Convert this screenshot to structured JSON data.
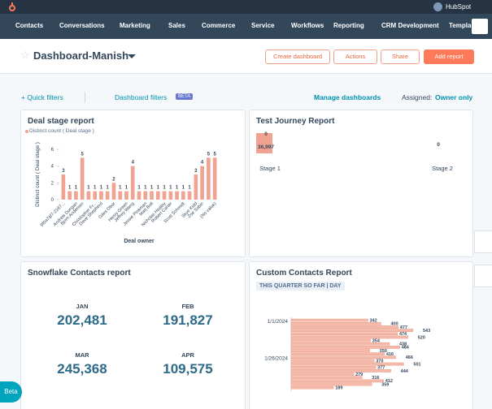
{
  "top_bar": {
    "account": "HubSpot"
  },
  "nav": {
    "items": [
      "Contacts",
      "Conversations",
      "Marketing",
      "Sales",
      "Commerce",
      "Service",
      "Workflows",
      "Reporting",
      "CRM Development",
      "Templa"
    ]
  },
  "header": {
    "title": "Dashboard-Manish",
    "buttons": [
      "Create dashboard",
      "Actions",
      "Share",
      "Add report"
    ]
  },
  "filters": {
    "quick": "Quick filters",
    "dashboard": "Dashboard filters",
    "badge": "BETA",
    "manage": "Manage dashboards",
    "assigned_label": "Assigned:",
    "assigned_value": "Owner only"
  },
  "deal_report": {
    "type": "bar",
    "title": "Deal stage report",
    "legend": "Distinct count ( Deal stage )",
    "y_label": "Distinct count ( Deal stage )",
    "x_label": "Deal owner",
    "color": "#f0a391",
    "categories": [
      "9f0a7af7-2187...",
      null,
      "Andrew Dungan",
      "Bjorn Andersen",
      null,
      "Christopher Fr...",
      "Dave Shepherd",
      null,
      "Giles Obor",
      null,
      "Henry Green",
      "Jeffrey Wang",
      null,
      "Jessie Pinkman",
      "Matt Boll",
      null,
      "Nicholas Healey",
      "Robert Carter",
      null,
      "Scott Schmidt",
      null,
      "Skye Kidd",
      "Zoe Sobin",
      null,
      "(No value)"
    ],
    "values": [
      3,
      1,
      1,
      5,
      1,
      1,
      1,
      1,
      2,
      1,
      1,
      4,
      1,
      1,
      1,
      1,
      1,
      1,
      1,
      1,
      1,
      3,
      4,
      5,
      5
    ],
    "ylim": [
      0,
      6
    ],
    "yticks": [
      0,
      2,
      4,
      6
    ]
  },
  "journey_report": {
    "type": "funnel",
    "title": "Test Journey Report",
    "stages": [
      {
        "label": "Stage 1",
        "top_label": "0",
        "value": 36997,
        "value_label": "36,997"
      },
      {
        "label": "Stage 2",
        "value": 0
      }
    ]
  },
  "snowflake_report": {
    "title": "Snowflake Contacts report",
    "metrics": [
      {
        "label": "JAN",
        "value": "202,481"
      },
      {
        "label": "FEB",
        "value": "191,827"
      },
      {
        "label": "MAR",
        "value": "245,368"
      },
      {
        "label": "APR",
        "value": "109,575"
      }
    ]
  },
  "custom_report": {
    "type": "hbar",
    "title": "Custom Contacts Report",
    "subtitle": "THIS QUARTER SO FAR | DAY",
    "color": "#f5b9aa",
    "categories": [
      "1/1/2024",
      null,
      null,
      null,
      null,
      null,
      null,
      null,
      null,
      null,
      null,
      "1/26/2024",
      null,
      null,
      null,
      null,
      null,
      null,
      null,
      null,
      null
    ],
    "values": [
      342,
      400,
      477,
      543,
      474,
      520,
      354,
      438,
      484,
      350,
      416,
      466,
      370,
      501,
      377,
      444,
      279,
      316,
      412,
      359,
      189
    ]
  },
  "beta_button": "Beta"
}
